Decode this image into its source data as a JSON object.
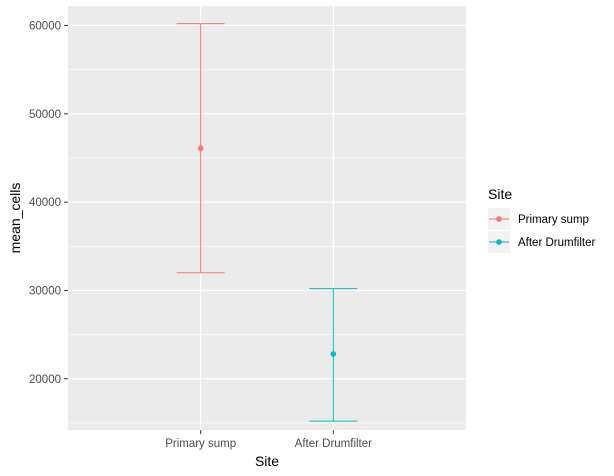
{
  "colors": {
    "panel_bg": "#ebebeb",
    "grid_major": "#ffffff",
    "tick_text": "#4d4d4d",
    "legend_key_bg": "#f2f2f2"
  },
  "chart_data": {
    "type": "scatter",
    "title": "",
    "xlabel": "Site",
    "ylabel": "mean_cells",
    "categories": [
      "Primary sump",
      "After Drumfilter"
    ],
    "ylim": [
      14200,
      62200
    ],
    "yticks": [
      20000,
      30000,
      40000,
      50000,
      60000
    ],
    "ytick_labels": [
      "20000",
      "30000",
      "40000",
      "50000",
      "60000"
    ],
    "grid": true,
    "legend": {
      "title": "Site",
      "position": "right"
    },
    "series": [
      {
        "name": "Primary sump",
        "color": "#F8766D",
        "category": "Primary sump",
        "mean": 46100,
        "lower": 32000,
        "upper": 60200
      },
      {
        "name": "After Drumfilter",
        "color": "#00BFC4",
        "category": "After Drumfilter",
        "mean": 22800,
        "lower": 15200,
        "upper": 30200
      }
    ]
  }
}
